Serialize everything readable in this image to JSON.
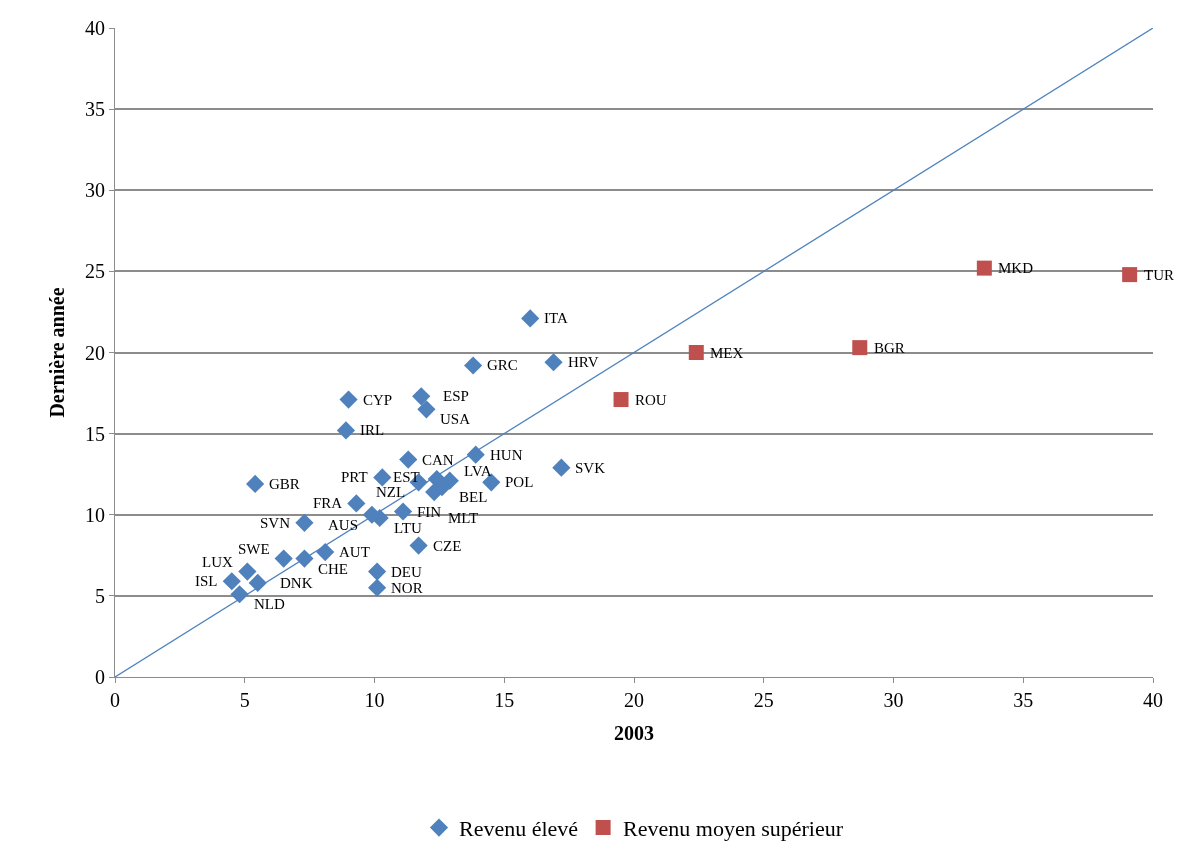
{
  "chart_data": {
    "type": "scatter",
    "xlabel": "2003",
    "ylabel": "Dernière année",
    "xlim": [
      0,
      40
    ],
    "xticks": [
      0,
      5,
      10,
      15,
      20,
      25,
      30,
      35,
      40
    ],
    "ylim": [
      0,
      40
    ],
    "yticks": [
      0,
      5,
      10,
      15,
      20,
      25,
      30,
      35,
      40
    ],
    "grid": "y",
    "legend": "bottom",
    "series": [
      {
        "name": "Revenu élevé",
        "color": "#4f81bd",
        "marker": "diamond",
        "x": [
          16.0,
          13.8,
          16.9,
          9.0,
          11.8,
          12.0,
          8.9,
          11.3,
          13.9,
          17.2,
          10.3,
          12.4,
          11.7,
          12.9,
          14.5,
          12.3,
          5.4,
          9.3,
          9.9,
          12.6,
          11.1,
          7.3,
          10.2,
          11.7,
          8.1,
          6.5,
          7.3,
          5.1,
          5.5,
          4.5,
          4.8,
          10.1,
          10.1
        ],
        "values": [
          22.1,
          19.2,
          19.4,
          17.1,
          17.3,
          16.5,
          15.2,
          13.4,
          13.7,
          12.9,
          12.3,
          12.2,
          12.0,
          12.1,
          12.0,
          11.4,
          11.9,
          10.7,
          10.0,
          11.7,
          10.2,
          9.5,
          9.8,
          8.1,
          7.7,
          7.3,
          7.3,
          6.5,
          5.8,
          5.9,
          5.1,
          6.5,
          5.5
        ]
      },
      {
        "name": "Revenu moyen supérieur",
        "color": "#c0504d",
        "marker": "square",
        "x": [
          33.5,
          39.1,
          22.4,
          28.7,
          19.5
        ],
        "values": [
          25.2,
          24.8,
          20.0,
          20.3,
          17.1
        ]
      },
      {
        "type": "line",
        "color": "#4f81bd",
        "marker": "none",
        "x": [
          0,
          40
        ],
        "values": [
          0,
          40
        ]
      }
    ],
    "annotations": [
      {
        "text": "ITA",
        "x": 16.0,
        "y": 22.1
      },
      {
        "text": "GRC",
        "x": 13.8,
        "y": 19.2
      },
      {
        "text": "HRV",
        "x": 16.9,
        "y": 19.4
      },
      {
        "text": "CYP",
        "x": 9.0,
        "y": 17.1
      },
      {
        "text": "ESP",
        "x": 11.8,
        "y": 17.3
      },
      {
        "text": "USA",
        "x": 12.0,
        "y": 16.5
      },
      {
        "text": "IRL",
        "x": 8.9,
        "y": 15.2
      },
      {
        "text": "CAN",
        "x": 11.3,
        "y": 13.4
      },
      {
        "text": "HUN",
        "x": 13.9,
        "y": 13.7
      },
      {
        "text": "SVK",
        "x": 17.2,
        "y": 12.9
      },
      {
        "text": "PRT",
        "x": 10.3,
        "y": 12.3
      },
      {
        "text": "BEL",
        "x": 12.4,
        "y": 12.2
      },
      {
        "text": "NZL",
        "x": 11.7,
        "y": 12.0
      },
      {
        "text": "LVA",
        "x": 12.9,
        "y": 12.1
      },
      {
        "text": "POL",
        "x": 14.5,
        "y": 12.0
      },
      {
        "text": "MLT",
        "x": 12.3,
        "y": 11.4
      },
      {
        "text": "GBR",
        "x": 5.4,
        "y": 11.9
      },
      {
        "text": "FRA",
        "x": 9.3,
        "y": 10.7
      },
      {
        "text": "AUS",
        "x": 9.9,
        "y": 10.0
      },
      {
        "text": "EST",
        "x": 12.6,
        "y": 11.7
      },
      {
        "text": "FIN",
        "x": 11.1,
        "y": 10.2
      },
      {
        "text": "SVN",
        "x": 7.3,
        "y": 9.5
      },
      {
        "text": "LTU",
        "x": 10.2,
        "y": 9.8
      },
      {
        "text": "CZE",
        "x": 11.7,
        "y": 8.1
      },
      {
        "text": "AUT",
        "x": 8.1,
        "y": 7.7
      },
      {
        "text": "SWE",
        "x": 6.5,
        "y": 7.3
      },
      {
        "text": "CHE",
        "x": 7.3,
        "y": 7.3
      },
      {
        "text": "LUX",
        "x": 5.1,
        "y": 6.5
      },
      {
        "text": "DNK",
        "x": 5.5,
        "y": 5.8
      },
      {
        "text": "ISL",
        "x": 4.5,
        "y": 5.9
      },
      {
        "text": "NLD",
        "x": 4.8,
        "y": 5.1
      },
      {
        "text": "DEU",
        "x": 10.1,
        "y": 6.5
      },
      {
        "text": "NOR",
        "x": 10.1,
        "y": 5.5
      },
      {
        "text": "MKD",
        "x": 33.5,
        "y": 25.2
      },
      {
        "text": "TUR",
        "x": 39.1,
        "y": 24.8
      },
      {
        "text": "MEX",
        "x": 22.4,
        "y": 20.0
      },
      {
        "text": "BGR",
        "x": 28.7,
        "y": 20.3
      },
      {
        "text": "ROU",
        "x": 19.5,
        "y": 17.1
      }
    ]
  }
}
